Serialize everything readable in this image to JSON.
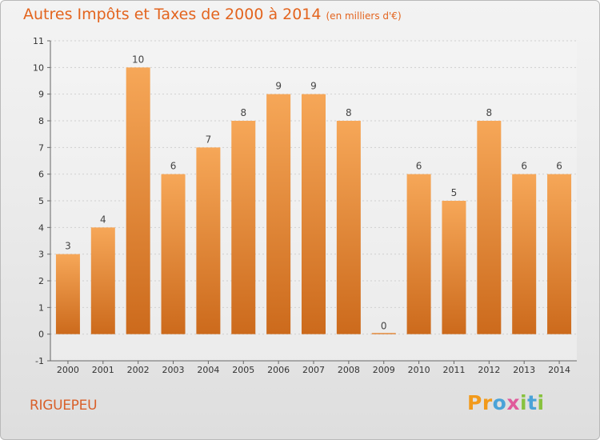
{
  "title": "Autres Impôts et Taxes de 2000 à 2014",
  "unit_note": "(en milliers d'€)",
  "commune": "RIGUEPEU",
  "brand": {
    "letters": [
      "P",
      "r",
      "o",
      "x",
      "i",
      "t",
      "i"
    ],
    "colors": [
      "#f29a1b",
      "#f29a1b",
      "#4aa3d8",
      "#e05a9b",
      "#88c23f",
      "#4aa3d8",
      "#88c23f"
    ]
  },
  "colors": {
    "bar_top": "#f6a758",
    "bar_bottom": "#cc6a1c",
    "title": "#e3641e"
  },
  "chart_data": {
    "type": "bar",
    "title": "Autres Impôts et Taxes de 2000 à 2014",
    "subtitle": "(en milliers d'€)",
    "categories": [
      "2000",
      "2001",
      "2002",
      "2003",
      "2004",
      "2005",
      "2006",
      "2007",
      "2008",
      "2009",
      "2010",
      "2011",
      "2012",
      "2013",
      "2014"
    ],
    "values": [
      3,
      4,
      10,
      6,
      7,
      8,
      9,
      9,
      8,
      0,
      6,
      5,
      8,
      6,
      6
    ],
    "ylim": [
      -1,
      11
    ],
    "yticks": [
      "-1",
      "0",
      "1",
      "2",
      "3",
      "4",
      "5",
      "6",
      "7",
      "8",
      "9",
      "10",
      "11"
    ],
    "grid": true
  }
}
